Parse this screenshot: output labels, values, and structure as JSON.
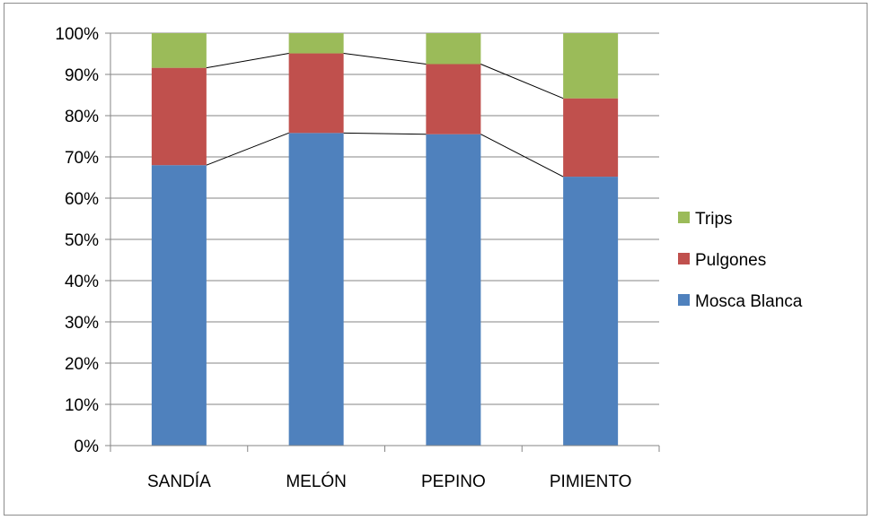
{
  "chart_data": {
    "type": "bar",
    "stacked": true,
    "percent": true,
    "categories": [
      "SANDÍA",
      "MELÓN",
      "PEPINO",
      "PIMIENTO"
    ],
    "series": [
      {
        "name": "Mosca Blanca",
        "values": [
          68.0,
          75.8,
          75.5,
          65.2
        ],
        "color": "#4f81bd"
      },
      {
        "name": "Pulgones",
        "values": [
          23.6,
          19.3,
          17.0,
          19.0
        ],
        "color": "#c0504d"
      },
      {
        "name": "Trips",
        "values": [
          8.4,
          4.9,
          7.5,
          15.8
        ],
        "color": "#9bbb59"
      }
    ],
    "ylim": [
      0,
      100
    ],
    "yticks": [
      "0%",
      "10%",
      "20%",
      "30%",
      "40%",
      "50%",
      "60%",
      "70%",
      "80%",
      "90%",
      "100%"
    ],
    "grid": true,
    "series_lines": true,
    "legend_position": "right",
    "legend_order": [
      "Trips",
      "Pulgones",
      "Mosca Blanca"
    ],
    "title": "",
    "xlabel": "",
    "ylabel": ""
  }
}
